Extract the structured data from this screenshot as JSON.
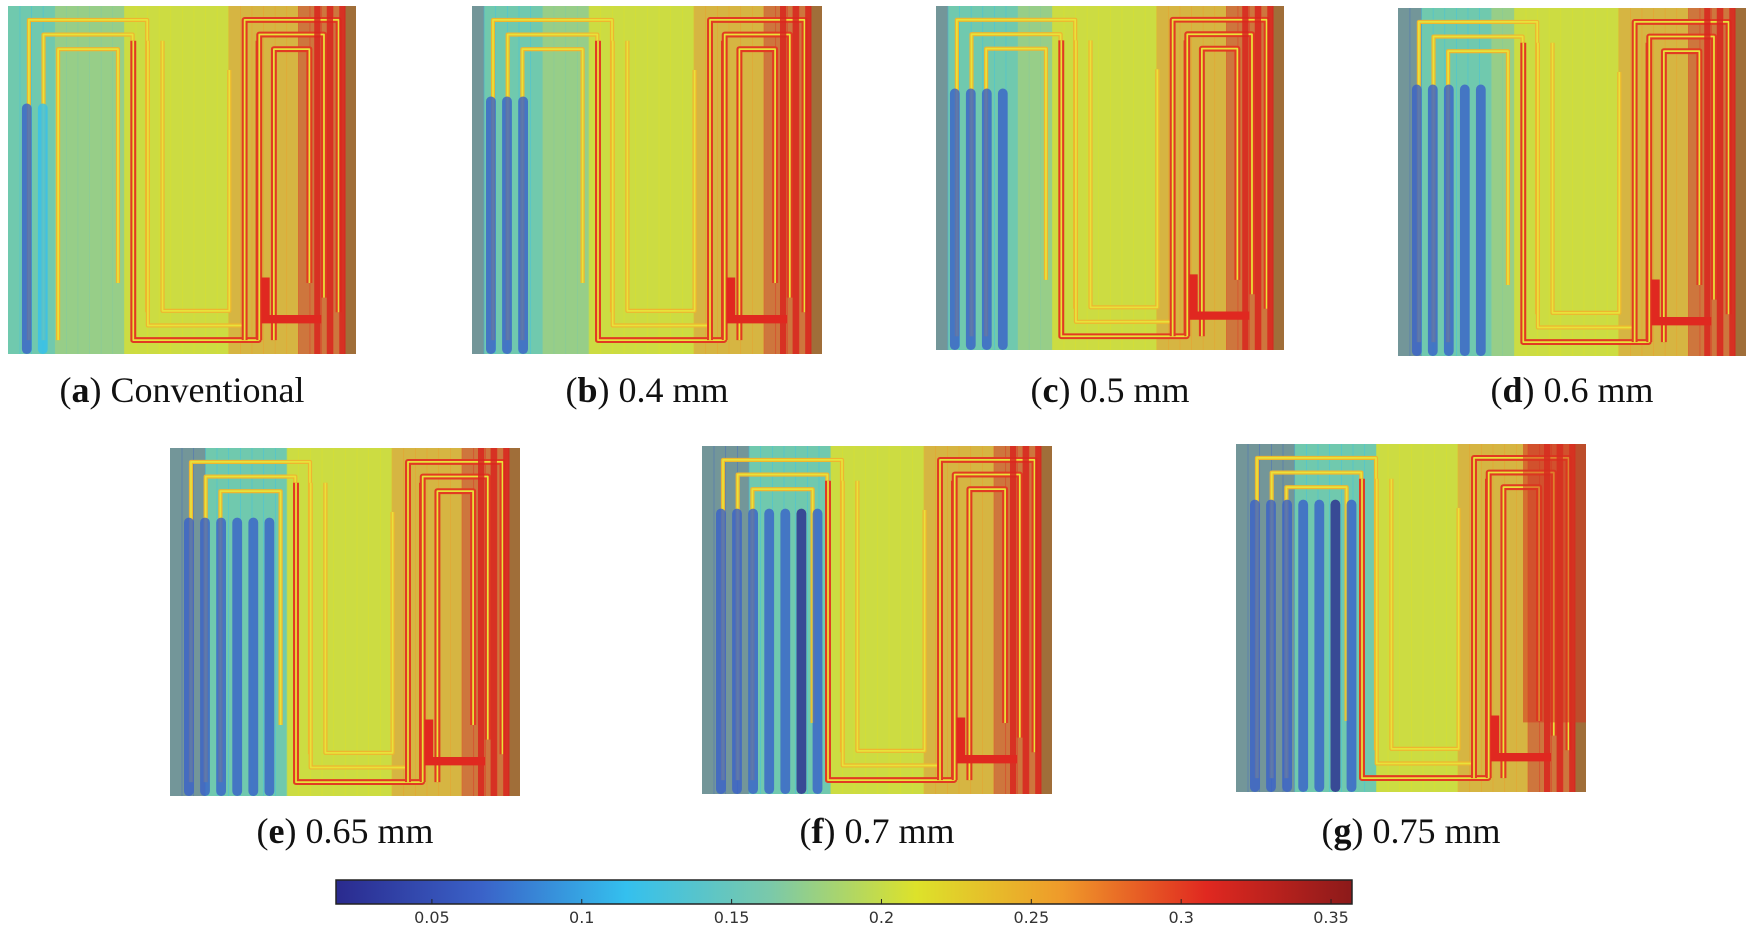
{
  "colormap": [
    "#2a2a8e",
    "#3a62c8",
    "#34c0ee",
    "#7bc9a9",
    "#dde22a",
    "#ef9a2a",
    "#e02820",
    "#8c1a1a"
  ],
  "panels": [
    {
      "letter": "a",
      "label": "Conventional",
      "variant": 0
    },
    {
      "letter": "b",
      "label": "0.4 mm",
      "variant": 1
    },
    {
      "letter": "c",
      "label": "0.5 mm",
      "variant": 2
    },
    {
      "letter": "d",
      "label": "0.6 mm",
      "variant": 3
    },
    {
      "letter": "e",
      "label": "0.65 mm",
      "variant": 4
    },
    {
      "letter": "f",
      "label": "0.7 mm",
      "variant": 5
    },
    {
      "letter": "g",
      "label": "0.75 mm",
      "variant": 6
    }
  ],
  "colorbar": {
    "min": 0.018,
    "max": 0.357,
    "ticks": [
      "0.05",
      "0.1",
      "0.15",
      "0.2",
      "0.25",
      "0.3",
      "0.35"
    ]
  }
}
